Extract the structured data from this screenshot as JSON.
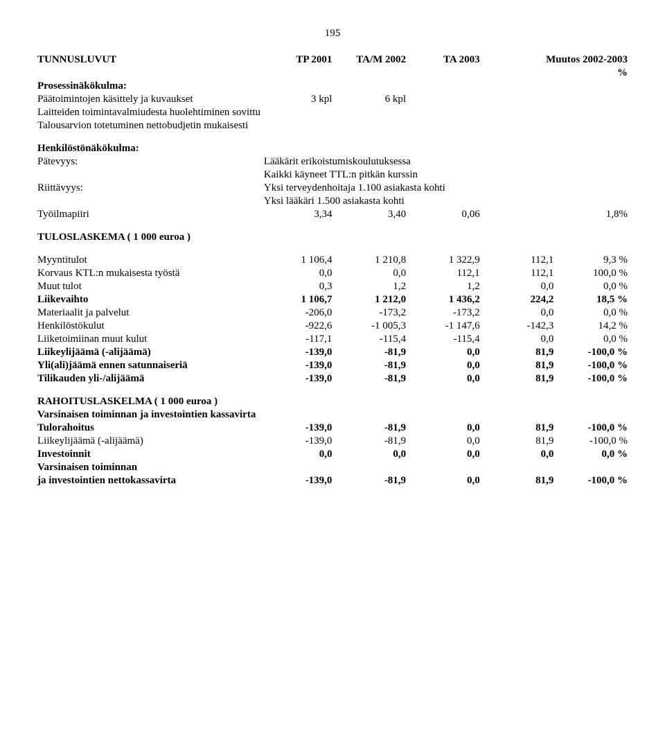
{
  "page_number": "195",
  "header": {
    "title": "TUNNUSLUVUT",
    "cols": [
      "TP 2001",
      "TA/M 2002",
      "TA 2003",
      "Muutos 2002-2003",
      "%"
    ]
  },
  "prosessi": {
    "heading": "Prosessinäkökulma:",
    "row1": {
      "label": "Päätoimintojen käsittely ja kuvaukset",
      "v1": "3 kpl",
      "v2": "6 kpl"
    },
    "row2": "Laitteiden toimintavalmiudesta huolehtiminen sovittu",
    "row3": "Talousarvion totetuminen nettobudjetin mukaisesti"
  },
  "henkilosto": {
    "heading": "Henkilöstönäkökulma:",
    "patevyys_label": "Pätevyys:",
    "patevyys_v1": "Lääkärit erikoistumiskoulutuksessa",
    "patevyys_v2": "Kaikki käyneet TTL:n pitkän kurssin",
    "riittavyys_label": "Riittävyys:",
    "riittavyys_v1": "Yksi terveydenhoitaja 1.100 asiakasta kohti",
    "riittavyys_v2": "Yksi lääkäri 1.500 asiakasta kohti",
    "tyoilmapiiri": {
      "label": "Työilmapiiri",
      "v1": "3,34",
      "v2": "3,40",
      "v3": "0,06",
      "v4": "1,8%"
    }
  },
  "tulos": {
    "heading": "TULOSLASKEMA ( 1 000 euroa )",
    "rows": [
      {
        "label": "Myyntitulot",
        "bold": false,
        "v": [
          "1 106,4",
          "1 210,8",
          "1 322,9",
          "112,1",
          "9,3 %"
        ]
      },
      {
        "label": "Korvaus KTL:n mukaisesta työstä",
        "bold": false,
        "v": [
          "0,0",
          "0,0",
          "112,1",
          "112,1",
          "100,0 %"
        ]
      },
      {
        "label": "Muut tulot",
        "bold": false,
        "v": [
          "0,3",
          "1,2",
          "1,2",
          "0,0",
          "0,0 %"
        ]
      },
      {
        "label": "Liikevaihto",
        "bold": true,
        "v": [
          "1 106,7",
          "1 212,0",
          "1 436,2",
          "224,2",
          "18,5 %"
        ]
      },
      {
        "label": "Materiaalit ja palvelut",
        "bold": false,
        "v": [
          "-206,0",
          "-173,2",
          "-173,2",
          "0,0",
          "0,0 %"
        ]
      },
      {
        "label": "Henkilöstökulut",
        "bold": false,
        "v": [
          "-922,6",
          "-1 005,3",
          "-1 147,6",
          "-142,3",
          "14,2 %"
        ]
      },
      {
        "label": "Liiketoimiinan muut kulut",
        "bold": false,
        "v": [
          "-117,1",
          "-115,4",
          "-115,4",
          "0,0",
          "0,0 %"
        ]
      },
      {
        "label": "Liikeylijäämä (-alijäämä)",
        "bold": true,
        "v": [
          "-139,0",
          "-81,9",
          "0,0",
          "81,9",
          "-100,0 %"
        ]
      },
      {
        "label": "Yli(ali)jäämä ennen satunnaiseriä",
        "bold": true,
        "v": [
          "-139,0",
          "-81,9",
          "0,0",
          "81,9",
          "-100,0 %"
        ]
      },
      {
        "label": "Tilikauden yli-/alijäämä",
        "bold": true,
        "v": [
          "-139,0",
          "-81,9",
          "0,0",
          "81,9",
          "-100,0 %"
        ]
      }
    ]
  },
  "rahoitus": {
    "heading": "RAHOITUSLASKELMA ( 1 000 euroa )",
    "sub1": "Varsinaisen toiminnan ja investointien kassavirta",
    "rows": [
      {
        "label": "Tulorahoitus",
        "bold": true,
        "v": [
          "-139,0",
          "-81,9",
          "0,0",
          "81,9",
          "-100,0 %"
        ]
      },
      {
        "label": "Liikeylijäämä (-alijäämä)",
        "bold": false,
        "v": [
          "-139,0",
          "-81,9",
          "0,0",
          "81,9",
          "-100,0 %"
        ]
      },
      {
        "label": "Investoinnit",
        "bold": true,
        "v": [
          "0,0",
          "0,0",
          "0,0",
          "0,0",
          "0,0 %"
        ]
      }
    ],
    "sub2a": "Varsinaisen toiminnan",
    "sub2b": {
      "label": "ja investointien nettokassavirta",
      "bold": true,
      "v": [
        "-139,0",
        "-81,9",
        "0,0",
        "81,9",
        "-100,0 %"
      ]
    }
  }
}
